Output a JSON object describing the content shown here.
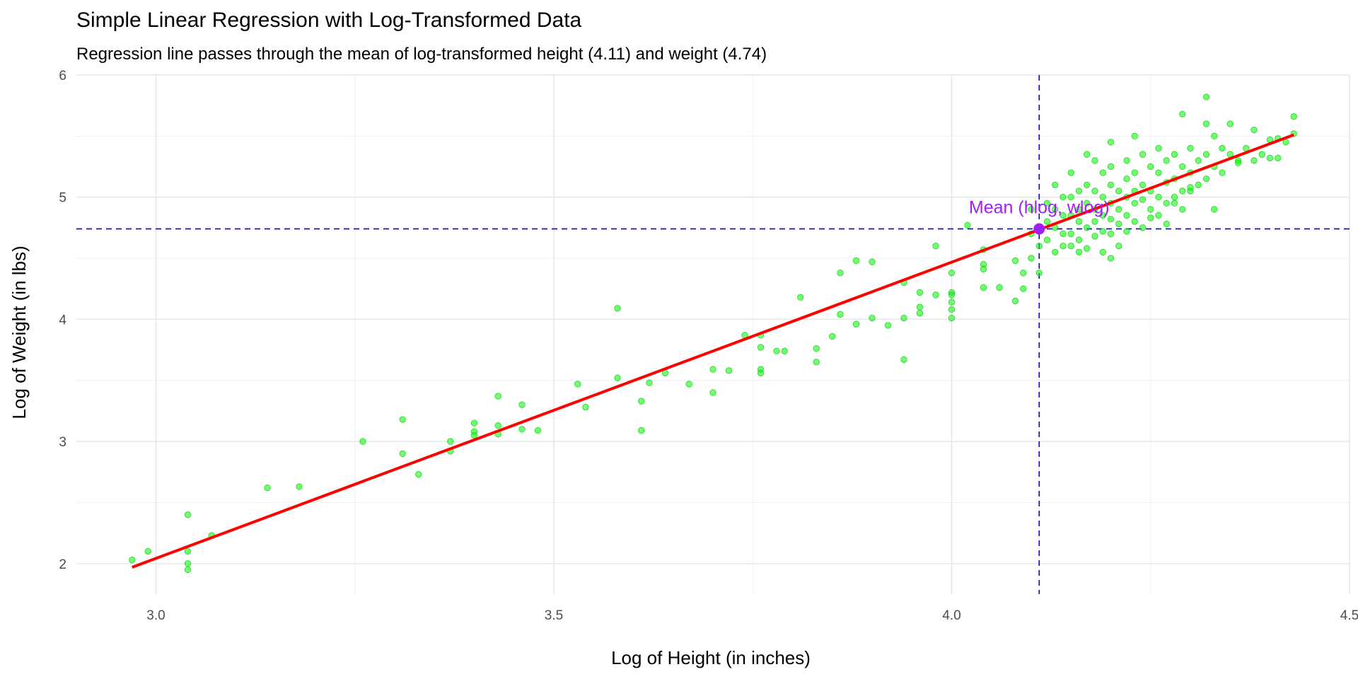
{
  "chart_data": {
    "type": "scatter",
    "title": "Simple Linear Regression with Log-Transformed Data",
    "subtitle": "Regression line passes through the mean of log-transformed height (4.11) and weight (4.74)",
    "xlabel": "Log of Height (in inches)",
    "ylabel": "Log of Weight (in lbs)",
    "xlim": [
      2.9,
      4.5
    ],
    "ylim": [
      1.75,
      6.0
    ],
    "x_ticks": [
      3.0,
      3.5,
      4.0,
      4.5
    ],
    "x_tick_labels": [
      "3.0",
      "3.5",
      "4.0",
      "4.5"
    ],
    "y_ticks": [
      2,
      3,
      4,
      5,
      6
    ],
    "y_tick_labels": [
      "2",
      "3",
      "4",
      "5",
      "6"
    ],
    "grid": true,
    "legend": "none",
    "regression_line": {
      "x": [
        2.97,
        4.43
      ],
      "y": [
        1.97,
        5.51
      ],
      "color": "#ff0000"
    },
    "mean_point": {
      "x": 4.11,
      "y": 4.74,
      "label": "Mean (hlog, wlog)",
      "color": "#a020f0"
    },
    "reference_lines": {
      "vertical_x": 4.11,
      "horizontal_y": 4.74,
      "color": "#0000ff",
      "style": "dashed"
    },
    "point_color": "#00ff00",
    "points": [
      [
        2.97,
        2.03
      ],
      [
        2.99,
        2.1
      ],
      [
        3.04,
        2.4
      ],
      [
        3.04,
        2.1
      ],
      [
        3.04,
        2.0
      ],
      [
        3.04,
        1.95
      ],
      [
        3.07,
        2.23
      ],
      [
        3.14,
        2.62
      ],
      [
        3.18,
        2.63
      ],
      [
        3.26,
        3.0
      ],
      [
        3.31,
        3.18
      ],
      [
        3.31,
        2.9
      ],
      [
        3.33,
        2.73
      ],
      [
        3.37,
        3.0
      ],
      [
        3.37,
        2.92
      ],
      [
        3.4,
        3.15
      ],
      [
        3.4,
        3.08
      ],
      [
        3.4,
        3.05
      ],
      [
        3.43,
        3.37
      ],
      [
        3.43,
        3.13
      ],
      [
        3.43,
        3.06
      ],
      [
        3.46,
        3.3
      ],
      [
        3.46,
        3.1
      ],
      [
        3.48,
        3.09
      ],
      [
        3.53,
        3.47
      ],
      [
        3.54,
        3.28
      ],
      [
        3.58,
        3.52
      ],
      [
        3.58,
        4.09
      ],
      [
        3.61,
        3.33
      ],
      [
        3.61,
        3.09
      ],
      [
        3.62,
        3.48
      ],
      [
        3.64,
        3.56
      ],
      [
        3.67,
        3.47
      ],
      [
        3.7,
        3.59
      ],
      [
        3.7,
        3.4
      ],
      [
        3.72,
        3.58
      ],
      [
        3.74,
        3.87
      ],
      [
        3.76,
        3.87
      ],
      [
        3.76,
        3.77
      ],
      [
        3.76,
        3.59
      ],
      [
        3.76,
        3.56
      ],
      [
        3.78,
        3.74
      ],
      [
        3.79,
        3.74
      ],
      [
        3.81,
        4.18
      ],
      [
        3.83,
        3.76
      ],
      [
        3.83,
        3.65
      ],
      [
        3.85,
        3.86
      ],
      [
        3.86,
        4.38
      ],
      [
        3.86,
        4.04
      ],
      [
        3.88,
        4.48
      ],
      [
        3.88,
        3.96
      ],
      [
        3.9,
        4.47
      ],
      [
        3.9,
        4.01
      ],
      [
        3.92,
        3.95
      ],
      [
        3.94,
        4.3
      ],
      [
        3.94,
        4.01
      ],
      [
        3.94,
        3.67
      ],
      [
        3.96,
        4.22
      ],
      [
        3.96,
        4.1
      ],
      [
        3.96,
        4.05
      ],
      [
        3.98,
        4.6
      ],
      [
        3.98,
        4.2
      ],
      [
        4.0,
        4.38
      ],
      [
        4.0,
        4.22
      ],
      [
        4.0,
        4.2
      ],
      [
        4.0,
        4.14
      ],
      [
        4.0,
        4.08
      ],
      [
        4.0,
        4.01
      ],
      [
        4.02,
        4.77
      ],
      [
        4.04,
        4.57
      ],
      [
        4.04,
        4.45
      ],
      [
        4.04,
        4.41
      ],
      [
        4.04,
        4.26
      ],
      [
        4.06,
        4.26
      ],
      [
        4.08,
        4.48
      ],
      [
        4.08,
        4.15
      ],
      [
        4.09,
        4.38
      ],
      [
        4.09,
        4.25
      ],
      [
        4.1,
        4.7
      ],
      [
        4.1,
        4.9
      ],
      [
        4.1,
        4.5
      ],
      [
        4.11,
        4.6
      ],
      [
        4.11,
        4.38
      ],
      [
        4.12,
        4.95
      ],
      [
        4.12,
        4.8
      ],
      [
        4.12,
        4.65
      ],
      [
        4.13,
        5.1
      ],
      [
        4.13,
        4.9
      ],
      [
        4.13,
        4.75
      ],
      [
        4.13,
        4.55
      ],
      [
        4.14,
        5.0
      ],
      [
        4.14,
        4.85
      ],
      [
        4.14,
        4.7
      ],
      [
        4.14,
        4.6
      ],
      [
        4.15,
        5.2
      ],
      [
        4.15,
        5.0
      ],
      [
        4.15,
        4.85
      ],
      [
        4.15,
        4.7
      ],
      [
        4.15,
        4.6
      ],
      [
        4.16,
        5.05
      ],
      [
        4.16,
        4.9
      ],
      [
        4.16,
        4.8
      ],
      [
        4.16,
        4.65
      ],
      [
        4.17,
        5.35
      ],
      [
        4.17,
        5.1
      ],
      [
        4.17,
        4.95
      ],
      [
        4.17,
        4.75
      ],
      [
        4.17,
        4.58
      ],
      [
        4.18,
        5.3
      ],
      [
        4.18,
        5.05
      ],
      [
        4.18,
        4.9
      ],
      [
        4.18,
        4.8
      ],
      [
        4.18,
        4.68
      ],
      [
        4.19,
        5.2
      ],
      [
        4.19,
        5.0
      ],
      [
        4.19,
        4.85
      ],
      [
        4.19,
        4.72
      ],
      [
        4.19,
        4.55
      ],
      [
        4.2,
        5.45
      ],
      [
        4.2,
        5.25
      ],
      [
        4.2,
        5.1
      ],
      [
        4.2,
        4.95
      ],
      [
        4.2,
        4.82
      ],
      [
        4.2,
        4.7
      ],
      [
        4.21,
        5.05
      ],
      [
        4.21,
        4.9
      ],
      [
        4.21,
        4.78
      ],
      [
        4.21,
        4.6
      ],
      [
        4.22,
        5.3
      ],
      [
        4.22,
        5.15
      ],
      [
        4.22,
        5.0
      ],
      [
        4.22,
        4.85
      ],
      [
        4.22,
        4.72
      ],
      [
        4.23,
        5.5
      ],
      [
        4.23,
        5.2
      ],
      [
        4.23,
        5.05
      ],
      [
        4.23,
        4.95
      ],
      [
        4.23,
        4.8
      ],
      [
        4.24,
        5.35
      ],
      [
        4.24,
        5.1
      ],
      [
        4.24,
        4.98
      ],
      [
        4.24,
        4.75
      ],
      [
        4.25,
        5.25
      ],
      [
        4.25,
        5.05
      ],
      [
        4.25,
        4.9
      ],
      [
        4.26,
        5.4
      ],
      [
        4.26,
        5.2
      ],
      [
        4.26,
        5.0
      ],
      [
        4.26,
        4.85
      ],
      [
        4.27,
        5.3
      ],
      [
        4.27,
        5.12
      ],
      [
        4.27,
        4.95
      ],
      [
        4.27,
        4.78
      ],
      [
        4.28,
        5.35
      ],
      [
        4.28,
        5.15
      ],
      [
        4.28,
        5.0
      ],
      [
        4.29,
        5.68
      ],
      [
        4.29,
        5.25
      ],
      [
        4.29,
        5.05
      ],
      [
        4.29,
        4.9
      ],
      [
        4.3,
        5.4
      ],
      [
        4.3,
        5.2
      ],
      [
        4.3,
        5.05
      ],
      [
        4.31,
        5.3
      ],
      [
        4.31,
        5.1
      ],
      [
        4.32,
        5.82
      ],
      [
        4.32,
        5.6
      ],
      [
        4.32,
        5.35
      ],
      [
        4.32,
        5.15
      ],
      [
        4.33,
        5.5
      ],
      [
        4.33,
        5.25
      ],
      [
        4.33,
        4.9
      ],
      [
        4.34,
        5.4
      ],
      [
        4.34,
        5.2
      ],
      [
        4.35,
        5.6
      ],
      [
        4.35,
        5.35
      ],
      [
        4.36,
        5.3
      ],
      [
        4.37,
        5.4
      ],
      [
        4.38,
        5.55
      ],
      [
        4.38,
        5.3
      ],
      [
        4.39,
        5.35
      ],
      [
        4.4,
        5.47
      ],
      [
        4.4,
        5.32
      ],
      [
        4.41,
        5.48
      ],
      [
        4.41,
        5.32
      ],
      [
        4.42,
        5.45
      ],
      [
        4.43,
        5.66
      ],
      [
        4.43,
        5.52
      ],
      [
        4.2,
        4.5
      ],
      [
        4.16,
        4.55
      ],
      [
        4.25,
        4.83
      ],
      [
        4.28,
        4.95
      ],
      [
        4.3,
        5.08
      ],
      [
        4.36,
        5.28
      ]
    ]
  }
}
